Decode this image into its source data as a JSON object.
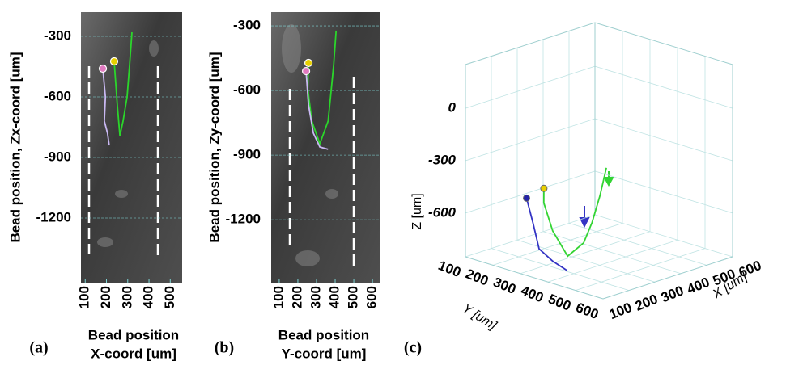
{
  "chart_data": [
    {
      "type": "line",
      "label": "(a)",
      "ylabel": "Bead position, Zx-coord [um]",
      "xlabel": [
        "Bead position",
        "X-coord [um]"
      ],
      "xlim": [
        80,
        556
      ],
      "ylim": [
        -1520,
        -180
      ],
      "xticks": [
        100,
        200,
        300,
        400,
        500
      ],
      "yticks": [
        -300,
        -600,
        -900,
        -1200
      ],
      "grid": true,
      "series": [
        {
          "color": "#2bd62b",
          "marker_color": "#e8d000",
          "x": [
            236,
            240,
            251,
            263,
            278,
            297,
            309,
            320
          ],
          "y": [
            -424,
            -480,
            -640,
            -792,
            -720,
            -600,
            -440,
            -280
          ]
        },
        {
          "color": "#c9b8f2",
          "marker_color": "#e07ac0",
          "x": [
            183,
            195,
            190,
            205,
            213
          ],
          "y": [
            -460,
            -600,
            -720,
            -780,
            -840
          ]
        }
      ]
    },
    {
      "type": "line",
      "label": "(b)",
      "ylabel": "Bead position, Zy-coord [um]",
      "xlabel": [
        "Bead position",
        "Y-coord [um]"
      ],
      "xlim": [
        57,
        643
      ],
      "ylim": [
        -1492,
        -236
      ],
      "xticks": [
        100,
        200,
        300,
        400,
        500,
        600
      ],
      "yticks": [
        -300,
        -600,
        -900,
        -1200
      ],
      "grid": true,
      "series": [
        {
          "color": "#2bd62b",
          "marker_color": "#e8d000",
          "x": [
            257,
            253,
            275,
            318,
            362,
            375,
            392,
            405
          ],
          "y": [
            -472,
            -592,
            -742,
            -847,
            -742,
            -630,
            -480,
            -322
          ]
        },
        {
          "color": "#c9b8f2",
          "marker_color": "#e07ac0",
          "x": [
            244,
            257,
            283,
            318,
            362
          ],
          "y": [
            -510,
            -667,
            -798,
            -862,
            -873
          ]
        }
      ]
    },
    {
      "type": "line3d",
      "label": "(c)",
      "xlabel": "X [um]",
      "ylabel": "Y [um]",
      "zlabel": "Z [um]",
      "xlim": [
        100,
        600
      ],
      "ylim": [
        100,
        600
      ],
      "zlim": [
        -850,
        250
      ],
      "xticks": [
        100,
        200,
        300,
        400,
        500,
        600
      ],
      "yticks": [
        100,
        200,
        300,
        400,
        500,
        600
      ],
      "zticks": [
        0,
        -300,
        -600
      ],
      "grid": true,
      "series": [
        {
          "color": "#33d433",
          "marker_color": "#e8d000",
          "x": [
            236,
            240,
            251,
            263,
            278,
            297,
            309,
            320
          ],
          "y": [
            257,
            253,
            275,
            318,
            362,
            375,
            392,
            405
          ],
          "z": [
            -448,
            -535,
            -690,
            -820,
            -730,
            -615,
            -460,
            -300
          ]
        },
        {
          "color": "#3434c4",
          "marker_color": "#2424a8",
          "x": [
            183,
            195,
            190,
            205,
            213
          ],
          "y": [
            244,
            257,
            283,
            318,
            362
          ],
          "z": [
            -485,
            -633,
            -760,
            -820,
            -856
          ]
        }
      ]
    }
  ]
}
